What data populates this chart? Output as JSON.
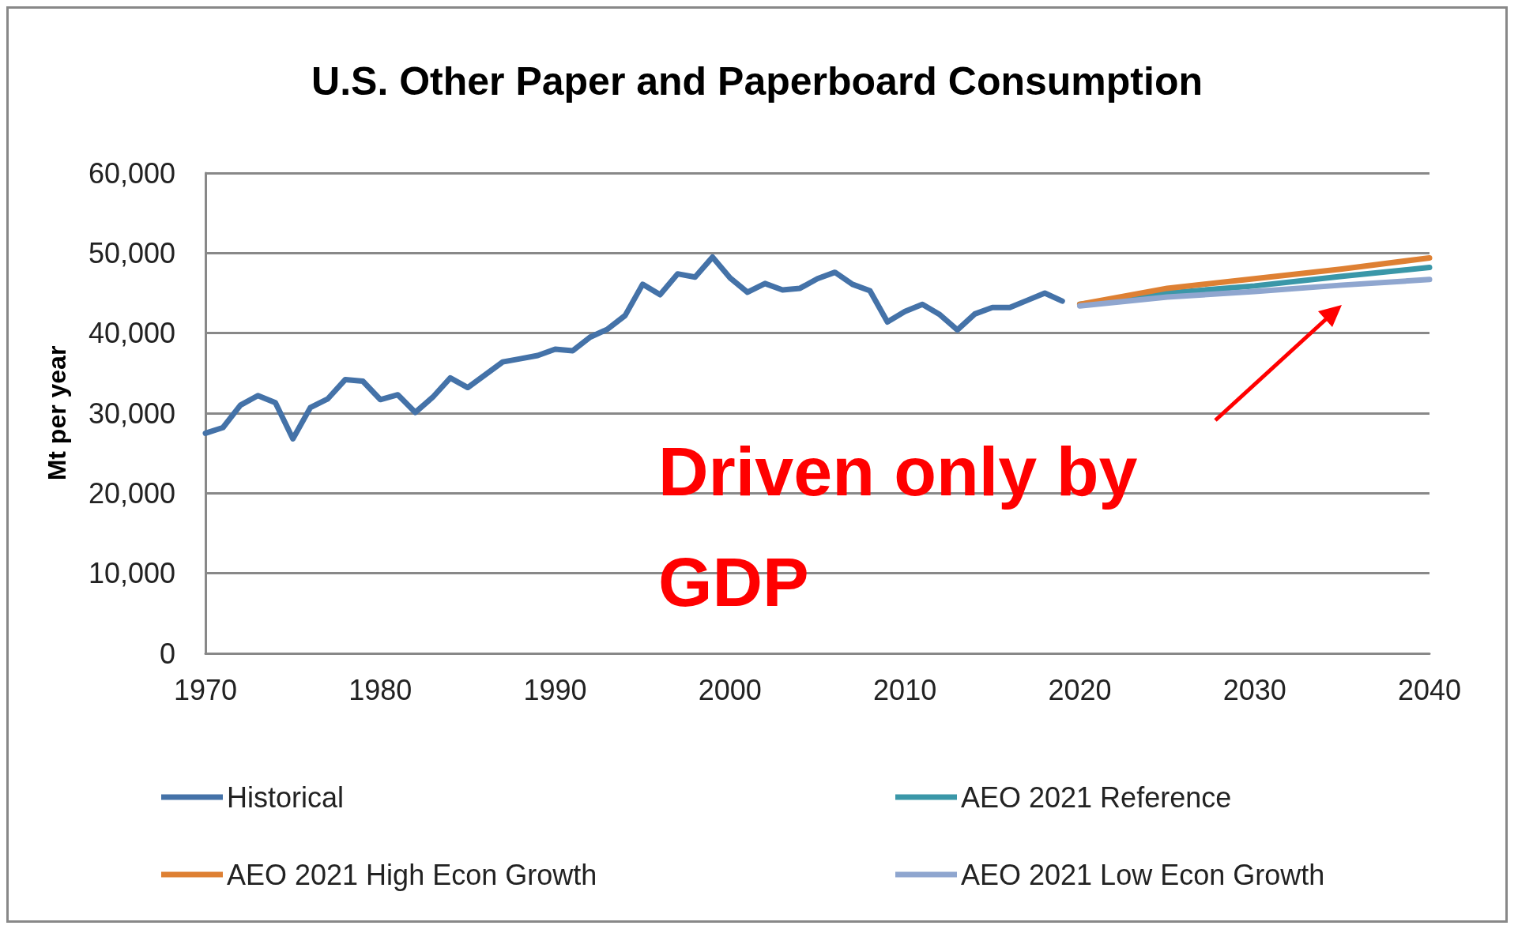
{
  "chart_data": {
    "type": "line",
    "title": "U.S. Other Paper and Paperboard Consumption",
    "ylabel": "Mt per year",
    "xlim": [
      1970,
      2040
    ],
    "xticks": [
      1970,
      1980,
      1990,
      2000,
      2010,
      2020,
      2030,
      2040
    ],
    "ylim": [
      0,
      60000
    ],
    "yticks": [
      {
        "value": 0,
        "label": "0"
      },
      {
        "value": 10000,
        "label": "10,000"
      },
      {
        "value": 20000,
        "label": "20,000"
      },
      {
        "value": 30000,
        "label": "30,000"
      },
      {
        "value": 40000,
        "label": "40,000"
      },
      {
        "value": 50000,
        "label": "50,000"
      },
      {
        "value": 60000,
        "label": "60,000"
      }
    ],
    "grid": "y",
    "legend": "bottom",
    "marker": "none",
    "line_style": "solid",
    "series": [
      {
        "name": "Historical",
        "color": "#4472a8",
        "x": [
          1970,
          1971,
          1972,
          1973,
          1974,
          1975,
          1976,
          1977,
          1978,
          1979,
          1980,
          1981,
          1982,
          1983,
          1984,
          1985,
          1986,
          1987,
          1988,
          1989,
          1990,
          1991,
          1992,
          1993,
          1994,
          1995,
          1996,
          1997,
          1998,
          1999,
          2000,
          2001,
          2002,
          2003,
          2004,
          2005,
          2006,
          2007,
          2008,
          2009,
          2010,
          2011,
          2012,
          2013,
          2014,
          2015,
          2016,
          2017,
          2018,
          2019
        ],
        "values": [
          27500,
          28200,
          31000,
          32200,
          31300,
          26800,
          30700,
          31800,
          34200,
          34000,
          31700,
          32300,
          30100,
          32000,
          34400,
          33200,
          34800,
          36400,
          36800,
          37200,
          38000,
          37800,
          39500,
          40500,
          42200,
          46100,
          44800,
          47400,
          47000,
          49500,
          46900,
          45100,
          46200,
          45400,
          45600,
          46800,
          47600,
          46100,
          45300,
          41400,
          42700,
          43600,
          42300,
          40400,
          42400,
          43200,
          43200,
          44100,
          45000,
          44000
        ]
      },
      {
        "name": "AEO 2021 Reference",
        "color": "#3a97a8",
        "x": [
          2020,
          2025,
          2030,
          2035,
          2040
        ],
        "values": [
          43600,
          45000,
          45900,
          47100,
          48200
        ]
      },
      {
        "name": "AEO 2021 High Econ Growth",
        "color": "#de8033",
        "x": [
          2020,
          2025,
          2030,
          2035,
          2040
        ],
        "values": [
          43600,
          45600,
          46800,
          48000,
          49400
        ]
      },
      {
        "name": "AEO 2021 Low Econ Growth",
        "color": "#8fa6cf",
        "x": [
          2020,
          2025,
          2030,
          2035,
          2040
        ],
        "values": [
          43400,
          44500,
          45200,
          46000,
          46700
        ]
      }
    ],
    "annotations": [
      "Driven only by GDP"
    ]
  }
}
